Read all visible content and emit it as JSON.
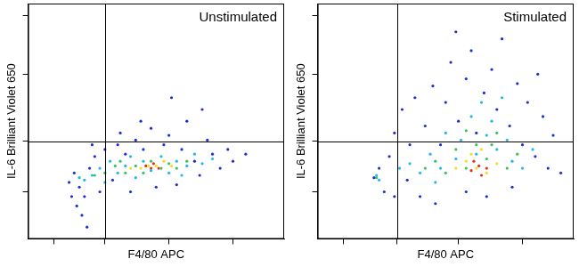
{
  "chart_data": [
    {
      "type": "scatter",
      "annotation": "Unstimulated",
      "x_label": "F4/80 APC",
      "y_label": "IL-6 Brilliant Violet 650",
      "xlim": [
        0,
        100
      ],
      "ylim": [
        0,
        100
      ],
      "xticks": [
        10,
        30,
        55,
        80
      ],
      "yticks": [
        20,
        41.5,
        70,
        95
      ],
      "tick_labels": false,
      "grid": false,
      "quadrant": {
        "x": 30,
        "y": 41.5
      },
      "series": [
        {
          "color": "#1f2fcf",
          "values": [
            [
              18,
              28
            ],
            [
              20,
              22
            ],
            [
              19,
              14
            ],
            [
              21,
              10
            ],
            [
              22,
              18
            ],
            [
              24,
              30
            ],
            [
              26,
              35
            ],
            [
              28,
              20
            ],
            [
              30,
              38
            ],
            [
              33,
              25
            ],
            [
              35,
              40
            ],
            [
              38,
              36
            ],
            [
              40,
              20
            ],
            [
              42,
              42
            ],
            [
              45,
              38
            ],
            [
              48,
              47
            ],
            [
              50,
              22
            ],
            [
              53,
              40
            ],
            [
              55,
              44
            ],
            [
              58,
              23
            ],
            [
              60,
              38
            ],
            [
              62,
              50
            ],
            [
              65,
              33
            ],
            [
              67,
              27
            ],
            [
              70,
              42
            ],
            [
              72,
              36
            ],
            [
              75,
              30
            ],
            [
              78,
              38
            ],
            [
              80,
              33
            ],
            [
              68,
              55
            ],
            [
              56,
              60
            ],
            [
              44,
              50
            ],
            [
              36,
              45
            ],
            [
              25,
              40
            ],
            [
              16,
              24
            ],
            [
              17,
              18
            ],
            [
              23,
              5
            ],
            [
              85,
              36
            ]
          ]
        },
        {
          "color": "#20b8e8",
          "values": [
            [
              22,
              25
            ],
            [
              25,
              27
            ],
            [
              28,
              30
            ],
            [
              30,
              24
            ],
            [
              32,
              33
            ],
            [
              35,
              28
            ],
            [
              38,
              31
            ],
            [
              40,
              35
            ],
            [
              42,
              26
            ],
            [
              45,
              33
            ],
            [
              48,
              29
            ],
            [
              52,
              35
            ],
            [
              55,
              28
            ],
            [
              58,
              33
            ],
            [
              62,
              31
            ],
            [
              65,
              36
            ],
            [
              68,
              32
            ],
            [
              72,
              34
            ],
            [
              20,
              26
            ],
            [
              60,
              27
            ]
          ]
        },
        {
          "color": "#3cc060",
          "values": [
            [
              30,
              28
            ],
            [
              34,
              31
            ],
            [
              38,
              28
            ],
            [
              42,
              31
            ],
            [
              45,
              28
            ],
            [
              48,
              33
            ],
            [
              52,
              30
            ],
            [
              55,
              32
            ],
            [
              58,
              30
            ],
            [
              62,
              33
            ],
            [
              26,
              27
            ],
            [
              36,
              33
            ]
          ]
        },
        {
          "color": "#f0e020",
          "values": [
            [
              40,
              30
            ],
            [
              44,
              30
            ],
            [
              47,
              31
            ],
            [
              50,
              31
            ],
            [
              53,
              33
            ],
            [
              56,
              31
            ]
          ]
        },
        {
          "color": "#e03020",
          "values": [
            [
              46,
              31
            ],
            [
              49,
              32
            ],
            [
              51,
              30
            ],
            [
              48,
              30
            ]
          ]
        }
      ]
    },
    {
      "type": "scatter",
      "annotation": "Stimulated",
      "x_label": "F4/80 APC",
      "y_label": "IL-6 Brilliant Violet 650",
      "xlim": [
        0,
        100
      ],
      "ylim": [
        0,
        100
      ],
      "xticks": [
        10,
        31,
        55,
        80
      ],
      "yticks": [
        20,
        41.5,
        70,
        95
      ],
      "tick_labels": false,
      "grid": false,
      "quadrant": {
        "x": 31,
        "y": 41.5
      },
      "series": [
        {
          "color": "#1f2fcf",
          "values": [
            [
              22,
              26
            ],
            [
              24,
              30
            ],
            [
              26,
              20
            ],
            [
              28,
              35
            ],
            [
              30,
              45
            ],
            [
              33,
              55
            ],
            [
              35,
              25
            ],
            [
              38,
              60
            ],
            [
              40,
              18
            ],
            [
              42,
              48
            ],
            [
              45,
              65
            ],
            [
              48,
              40
            ],
            [
              50,
              58
            ],
            [
              52,
              75
            ],
            [
              55,
              50
            ],
            [
              58,
              68
            ],
            [
              60,
              80
            ],
            [
              62,
              45
            ],
            [
              65,
              62
            ],
            [
              68,
              72
            ],
            [
              70,
              55
            ],
            [
              72,
              85
            ],
            [
              75,
              48
            ],
            [
              78,
              66
            ],
            [
              80,
              40
            ],
            [
              82,
              58
            ],
            [
              85,
              35
            ],
            [
              88,
              52
            ],
            [
              90,
              30
            ],
            [
              92,
              44
            ],
            [
              95,
              28
            ],
            [
              58,
              20
            ],
            [
              66,
              18
            ],
            [
              46,
              15
            ],
            [
              76,
              22
            ],
            [
              36,
              40
            ],
            [
              30,
              18
            ],
            [
              86,
              70
            ],
            [
              54,
              88
            ]
          ]
        },
        {
          "color": "#20b8e8",
          "values": [
            [
              23,
              27
            ],
            [
              24,
              25
            ],
            [
              32,
              30
            ],
            [
              36,
              32
            ],
            [
              40,
              28
            ],
            [
              44,
              36
            ],
            [
              48,
              30
            ],
            [
              50,
              45
            ],
            [
              54,
              34
            ],
            [
              56,
              42
            ],
            [
              60,
              52
            ],
            [
              62,
              36
            ],
            [
              66,
              44
            ],
            [
              68,
              50
            ],
            [
              70,
              38
            ],
            [
              74,
              42
            ],
            [
              76,
              33
            ],
            [
              80,
              30
            ],
            [
              84,
              38
            ],
            [
              64,
              58
            ],
            [
              72,
              60
            ],
            [
              46,
              24
            ]
          ]
        },
        {
          "color": "#3cc060",
          "values": [
            [
              23,
              26
            ],
            [
              42,
              30
            ],
            [
              46,
              33
            ],
            [
              50,
              28
            ],
            [
              54,
              38
            ],
            [
              58,
              30
            ],
            [
              62,
              40
            ],
            [
              66,
              34
            ],
            [
              70,
              45
            ],
            [
              74,
              30
            ],
            [
              78,
              36
            ],
            [
              58,
              46
            ],
            [
              68,
              40
            ]
          ]
        },
        {
          "color": "#f0e020",
          "values": [
            [
              54,
              30
            ],
            [
              58,
              33
            ],
            [
              62,
              30
            ],
            [
              66,
              28
            ],
            [
              70,
              32
            ],
            [
              60,
              36
            ],
            [
              64,
              38
            ]
          ]
        },
        {
          "color": "#e03020",
          "values": [
            [
              60,
              29
            ],
            [
              63,
              31
            ],
            [
              66,
              30
            ],
            [
              64,
              27
            ],
            [
              61,
              33
            ]
          ]
        }
      ]
    }
  ]
}
